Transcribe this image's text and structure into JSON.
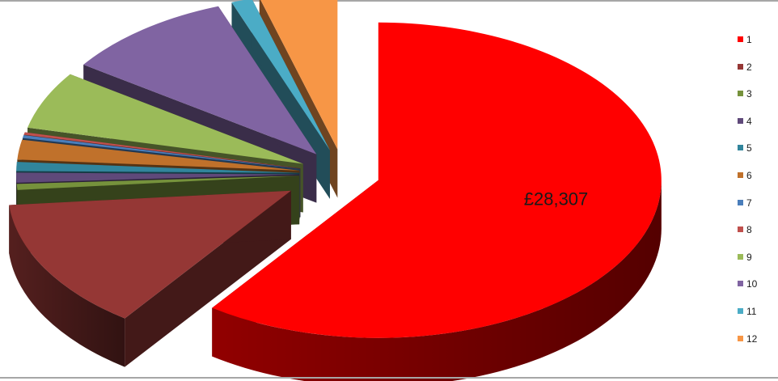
{
  "chart_data": {
    "type": "pie",
    "variant": "3d-exploded",
    "categories": [
      "1",
      "2",
      "3",
      "4",
      "5",
      "6",
      "7",
      "8",
      "9",
      "10",
      "11",
      "12"
    ],
    "values": [
      28307,
      6400,
      290,
      480,
      440,
      950,
      140,
      120,
      2800,
      4600,
      560,
      2100
    ],
    "colors": [
      "#ff0000",
      "#953735",
      "#76923c",
      "#5f497a",
      "#31859c",
      "#c0712b",
      "#4a7ebb",
      "#c0504d",
      "#9bbb59",
      "#8064a2",
      "#4bacc6",
      "#f79646"
    ],
    "data_labels": [
      {
        "category": "1",
        "text": "£28,307"
      }
    ],
    "legend": "right",
    "title": ""
  }
}
